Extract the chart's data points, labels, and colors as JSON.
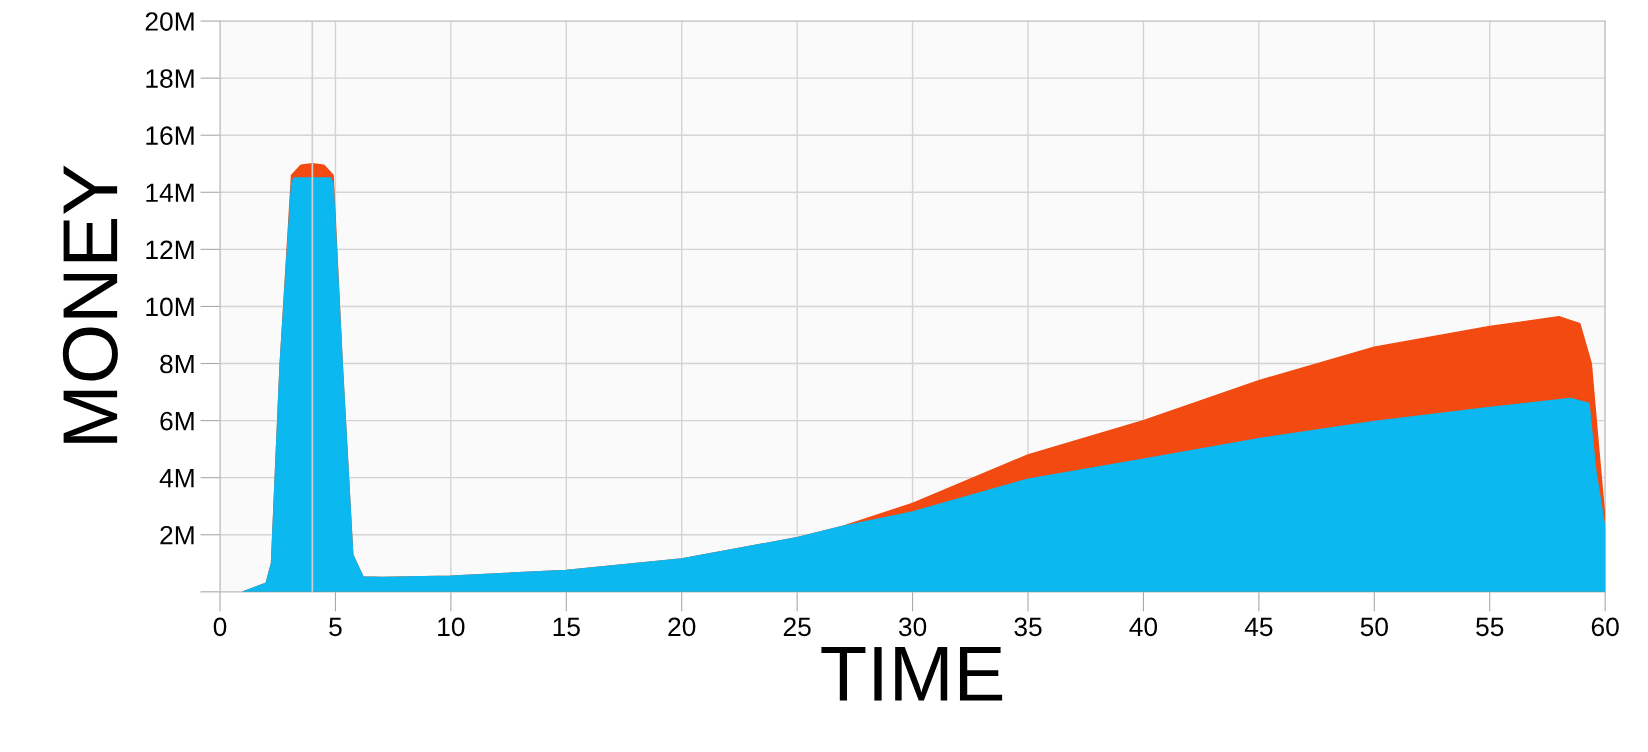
{
  "chart_data": {
    "type": "area",
    "xlabel": "TIME",
    "ylabel": "MONEY",
    "series": [
      {
        "color": "#f24a10",
        "x": [
          1.0,
          2.0,
          2.23,
          2.6,
          3.1,
          3.5,
          4.0,
          4.5,
          4.9,
          5.3,
          5.75,
          6.2,
          7,
          10,
          15,
          20,
          25,
          27,
          30,
          35,
          40,
          45,
          50,
          55,
          58,
          58.9,
          59.4,
          59.7,
          60
        ],
        "values": [
          0,
          0.3,
          1.0,
          7.9,
          14.6,
          14.95,
          15.0,
          14.95,
          14.6,
          7.9,
          1.3,
          0.52,
          0.5,
          0.55,
          0.75,
          1.15,
          1.9,
          2.3,
          3.1,
          4.8,
          6.0,
          7.4,
          8.57,
          9.3,
          9.64,
          9.4,
          8.0,
          5.2,
          2.5
        ]
      },
      {
        "color": "#0bb8f0",
        "x": [
          1.0,
          2.0,
          2.23,
          2.6,
          3.1,
          3.2,
          4.0,
          4.8,
          4.9,
          5.3,
          5.75,
          6.2,
          7,
          10,
          15,
          20,
          25,
          27,
          30,
          35,
          40,
          45,
          50,
          55,
          58.5,
          59.3,
          59.6,
          60
        ],
        "values": [
          0,
          0.3,
          1.0,
          7.9,
          14.3,
          14.5,
          14.5,
          14.5,
          14.3,
          7.9,
          1.3,
          0.52,
          0.5,
          0.55,
          0.75,
          1.15,
          1.9,
          2.3,
          2.8,
          3.95,
          4.65,
          5.37,
          5.97,
          6.46,
          6.78,
          6.6,
          4.2,
          2.2
        ]
      }
    ],
    "xlim": [
      0,
      60
    ],
    "ylim": [
      0,
      20
    ],
    "xticks": [
      0,
      5,
      10,
      15,
      20,
      25,
      30,
      35,
      40,
      45,
      50,
      55,
      60
    ],
    "yticks": [
      {
        "value": 0,
        "label": null
      },
      {
        "value": 2,
        "label": "2M"
      },
      {
        "value": 4,
        "label": "4M"
      },
      {
        "value": 6,
        "label": "6M"
      },
      {
        "value": 8,
        "label": "8M"
      },
      {
        "value": 10,
        "label": "10M"
      },
      {
        "value": 12,
        "label": "12M"
      },
      {
        "value": 14,
        "label": "14M"
      },
      {
        "value": 16,
        "label": "16M"
      },
      {
        "value": 18,
        "label": "18M"
      },
      {
        "value": 20,
        "label": "20M"
      }
    ],
    "ref_lines": [
      {
        "axis": "x",
        "value": 4,
        "color": "#d0d0d0"
      }
    ],
    "grid": true,
    "legend": false
  }
}
